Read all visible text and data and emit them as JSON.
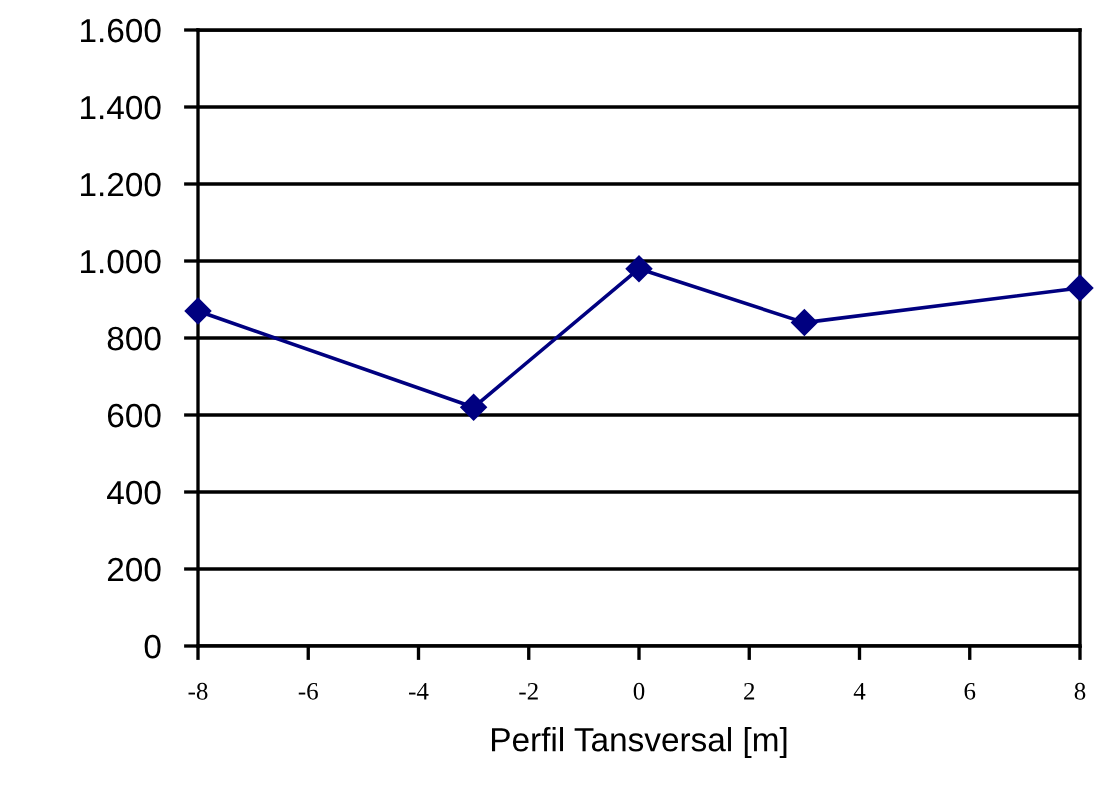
{
  "chart_data": {
    "type": "line",
    "xlabel": "Perfil Tansversal [m]",
    "x": [
      -8,
      -3,
      0,
      3,
      8
    ],
    "series": [
      {
        "color": "#000080",
        "values": [
          870,
          620,
          980,
          840,
          930
        ]
      }
    ],
    "xlim": [
      -8,
      8
    ],
    "xticks": [
      -8,
      -6,
      -4,
      -2,
      0,
      2,
      4,
      6,
      8
    ],
    "ylim": [
      0,
      1600
    ],
    "yticks": [
      0,
      200,
      400,
      600,
      800,
      {
        "value": 1000,
        "label": "1.000"
      },
      {
        "value": 1200,
        "label": "1.200"
      },
      {
        "value": 1400,
        "label": "1.400"
      },
      {
        "value": 1600,
        "label": "1.600"
      }
    ],
    "grid": "y",
    "marker": "diamond",
    "line_style": "solid"
  }
}
